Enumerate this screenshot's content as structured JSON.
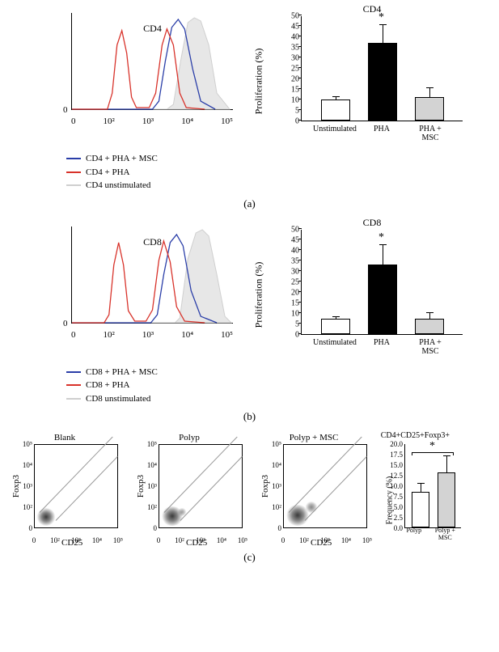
{
  "panel_a": {
    "label": "(a)",
    "histogram": {
      "title": "CD4",
      "y_zero": "0",
      "x_ticks": [
        "0",
        "10²",
        "10³",
        "10⁴",
        "10⁵"
      ],
      "series": {
        "unstim": {
          "color": "#cfcfcf",
          "fill": "#e7e7e7",
          "label": "CD4 unstimulated"
        },
        "pha": {
          "color": "#d8322a",
          "label": "CD4 + PHA"
        },
        "msc": {
          "color": "#2a3ea8",
          "label": "CD4 + PHA + MSC"
        }
      }
    },
    "bar": {
      "type": "bar",
      "title": "CD4",
      "ylabel": "Proliferation (%)",
      "ylim": [
        0,
        50
      ],
      "ytick_step": 5,
      "categories": [
        "Unstimulated",
        "PHA",
        "PHA + MSC"
      ],
      "values": [
        10,
        37,
        11
      ],
      "errors": [
        2,
        9,
        5
      ],
      "colors": [
        "#ffffff",
        "#000000",
        "#d3d3d3"
      ],
      "sig_label": "*",
      "sig_on": 1,
      "border": "#000000"
    }
  },
  "panel_b": {
    "label": "(b)",
    "histogram": {
      "title": "CD8",
      "y_zero": "0",
      "x_ticks": [
        "0",
        "10²",
        "10³",
        "10⁴",
        "10⁵"
      ],
      "series": {
        "unstim": {
          "color": "#cfcfcf",
          "fill": "#e7e7e7",
          "label": "CD8 unstimulated"
        },
        "pha": {
          "color": "#d8322a",
          "label": "CD8 + PHA"
        },
        "msc": {
          "color": "#2a3ea8",
          "label": "CD8 + PHA + MSC"
        }
      }
    },
    "bar": {
      "type": "bar",
      "title": "CD8",
      "ylabel": "Proliferation (%)",
      "ylim": [
        0,
        50
      ],
      "ytick_step": 5,
      "categories": [
        "Unstimulated",
        "PHA",
        "PHA + MSC"
      ],
      "values": [
        7,
        33,
        7
      ],
      "errors": [
        1.5,
        10,
        3.5
      ],
      "colors": [
        "#ffffff",
        "#000000",
        "#d3d3d3"
      ],
      "sig_label": "*",
      "sig_on": 1,
      "border": "#000000"
    }
  },
  "panel_c": {
    "label": "(c)",
    "scatter": {
      "x_axis_label": "CD25",
      "y_axis_label": "Foxp3",
      "y_ticks": [
        "0",
        "10²",
        "10³",
        "10⁴",
        "10⁵"
      ],
      "x_ticks": [
        "0",
        "10²",
        "10³",
        "10⁴",
        "10⁵"
      ],
      "plots": [
        {
          "title": "Blank"
        },
        {
          "title": "Polyp"
        },
        {
          "title": "Polyp + MSC"
        }
      ]
    },
    "bar": {
      "type": "bar",
      "title": "CD4+CD25+Foxp3+",
      "ylabel": "Frequency (%)",
      "ylim": [
        0,
        20
      ],
      "ytick_step": 2.5,
      "categories": [
        "Polyp",
        "Polyp + MSC"
      ],
      "values": [
        8.5,
        13
      ],
      "errors": [
        2.3,
        4.3
      ],
      "colors": [
        "#ffffff",
        "#d3d3d3"
      ],
      "sig_label": "*",
      "border": "#000000"
    }
  }
}
